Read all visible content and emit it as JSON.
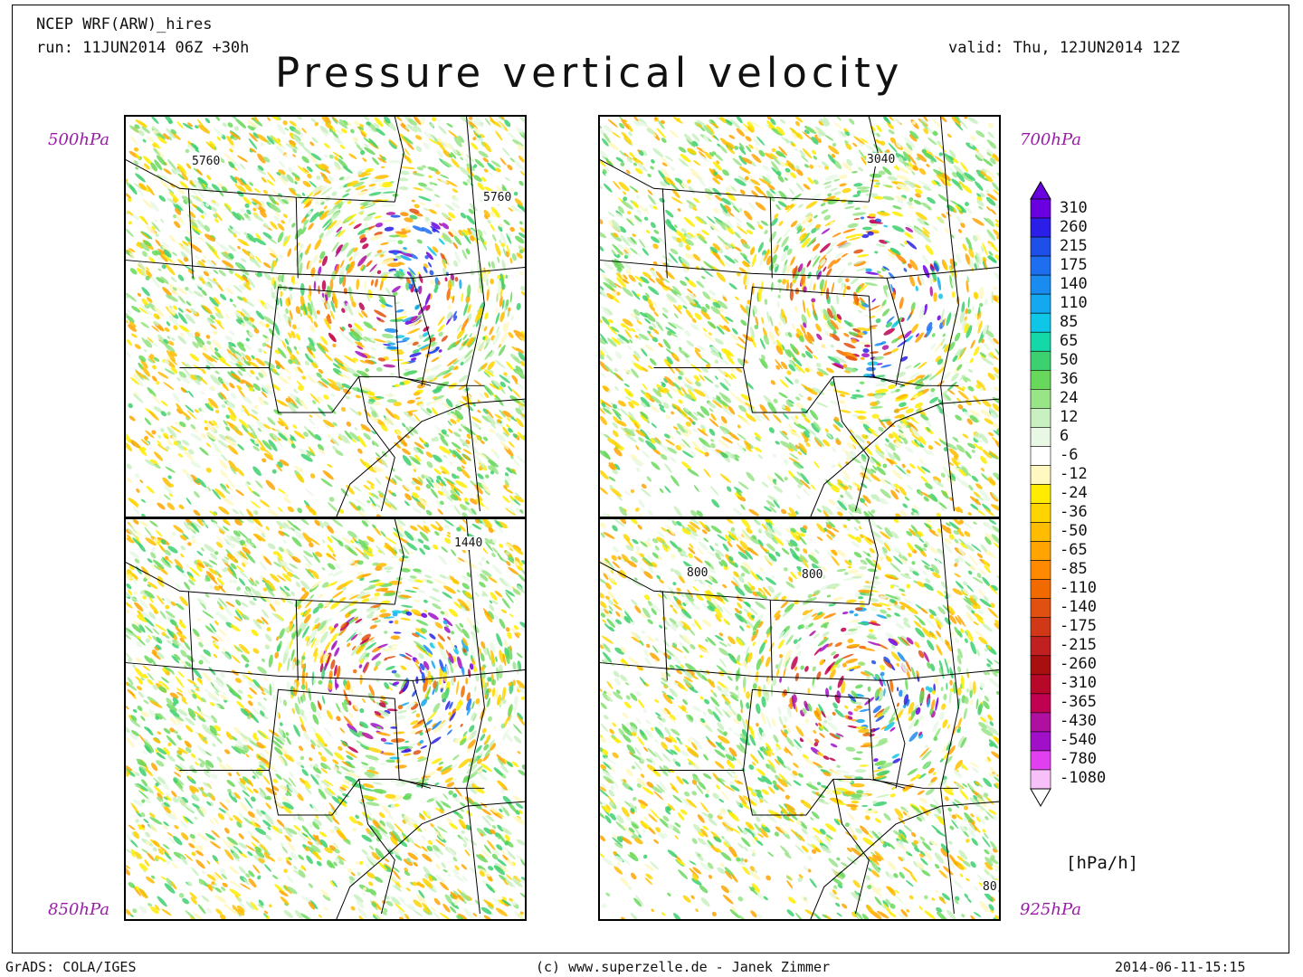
{
  "header": {
    "model": "NCEP WRF(ARW)_hires",
    "run": "run: 11JUN2014 06Z +30h",
    "valid": "valid: Thu, 12JUN2014 12Z",
    "title": "Pressure vertical velocity"
  },
  "panels": [
    {
      "id": "500",
      "level_label": "500hPa",
      "contour_labels": [
        "5760",
        "5760"
      ]
    },
    {
      "id": "700",
      "level_label": "700hPa",
      "contour_labels": [
        "3040"
      ]
    },
    {
      "id": "850",
      "level_label": "850hPa",
      "contour_labels": [
        "1440"
      ]
    },
    {
      "id": "925",
      "level_label": "925hPa",
      "contour_labels": [
        "800",
        "800",
        "80"
      ]
    }
  ],
  "colorbar": {
    "units": "[hPa/h]",
    "labels": [
      "310",
      "260",
      "215",
      "175",
      "140",
      "110",
      "85",
      "65",
      "50",
      "36",
      "24",
      "12",
      "6",
      "-6",
      "-12",
      "-24",
      "-36",
      "-50",
      "-65",
      "-85",
      "-110",
      "-140",
      "-175",
      "-215",
      "-260",
      "-310",
      "-365",
      "-430",
      "-540",
      "-780",
      "-1080"
    ],
    "colors": [
      "#6a00e0",
      "#2a1ee8",
      "#1e4fe8",
      "#1e6ff0",
      "#1a8cf0",
      "#14a8f0",
      "#10c6e8",
      "#14d8a8",
      "#3cd070",
      "#68d85c",
      "#98e486",
      "#c8f0c0",
      "#e8f8e4",
      "#ffffff",
      "#fff8c0",
      "#ffec00",
      "#ffd400",
      "#ffbc00",
      "#ffa400",
      "#ff8a00",
      "#f06a00",
      "#e05010",
      "#d03818",
      "#c02020",
      "#a81010",
      "#b8082a",
      "#c00050",
      "#b010a0",
      "#a010c8",
      "#e040f0",
      "#f8c0f8"
    ]
  },
  "footer": {
    "left": "GrADS: COLA/IGES",
    "center": "(c) www.superzelle.de - Janek Zimmer",
    "right": "2014-06-11-15:15"
  }
}
